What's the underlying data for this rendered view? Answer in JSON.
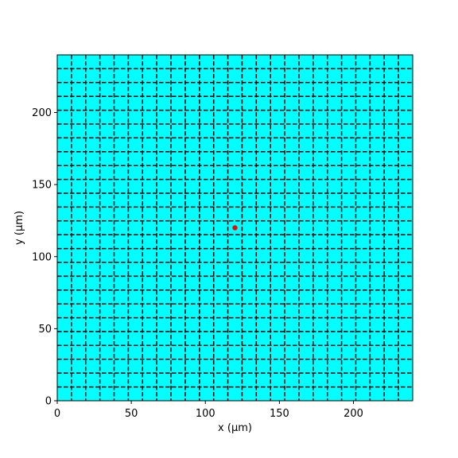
{
  "chart_data": {
    "type": "scatter",
    "xlabel": "x (μm)",
    "ylabel": "y (μm)",
    "xlim": [
      0,
      240
    ],
    "ylim": [
      0,
      240
    ],
    "x_ticks": [
      0,
      50,
      100,
      150,
      200
    ],
    "y_ticks": [
      0,
      50,
      100,
      150,
      200
    ],
    "x_tick_labels": [
      "0",
      "50",
      "100",
      "150",
      "200"
    ],
    "y_tick_labels": [
      "0",
      "50",
      "100",
      "150",
      "200"
    ],
    "background_color": "#00ffff",
    "grid": {
      "visible": true,
      "style": "dashed",
      "color": "#000000",
      "x_lines": [
        9.6,
        19.2,
        28.8,
        38.4,
        48.0,
        57.6,
        67.2,
        76.8,
        86.4,
        96.0,
        105.6,
        115.2,
        124.8,
        134.4,
        144.0,
        153.6,
        163.2,
        172.8,
        182.4,
        192.0,
        201.6,
        211.2,
        220.8,
        230.4
      ],
      "y_lines": [
        9.6,
        19.2,
        28.8,
        38.4,
        48.0,
        57.6,
        67.2,
        76.8,
        86.4,
        96.0,
        105.6,
        115.2,
        124.8,
        134.4,
        144.0,
        153.6,
        163.2,
        172.8,
        182.4,
        192.0,
        201.6,
        211.2,
        220.8,
        230.4
      ]
    },
    "points": [
      {
        "x": 120,
        "y": 120,
        "color": "#ff0000"
      }
    ]
  }
}
